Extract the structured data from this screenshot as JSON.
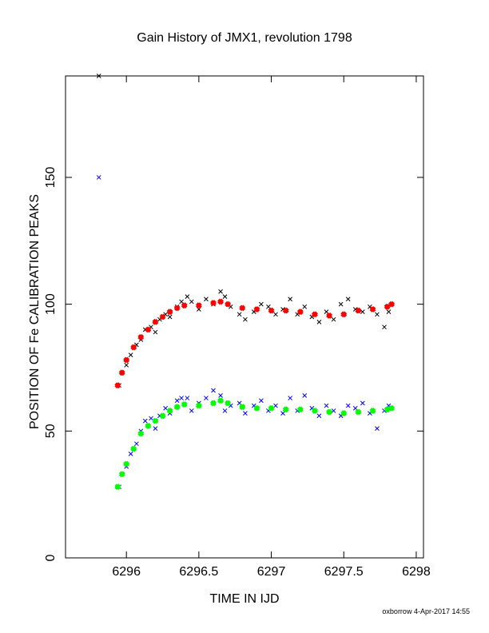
{
  "chart_data": {
    "type": "scatter",
    "title": "Gain History of JMX1, revolution 1798",
    "xlabel": "TIME IN IJD",
    "ylabel": "POSITION OF Fe CALIBRATION PEAKS",
    "footer": "oxborrow  4-Apr-2017 14:55",
    "xlim": [
      6295.58,
      6298.05
    ],
    "ylim": [
      0,
      190
    ],
    "xticks": [
      6296,
      6296.5,
      6297,
      6297.5,
      6298
    ],
    "yticks": [
      0,
      50,
      100,
      150
    ],
    "grid": false,
    "series": [
      {
        "color": "#000000",
        "x": [
          6295.81,
          6295.95,
          6296.0,
          6296.03,
          6296.07,
          6296.1,
          6296.13,
          6296.17,
          6296.2,
          6296.23,
          6296.27,
          6296.3,
          6296.35,
          6296.38,
          6296.42,
          6296.45,
          6296.5,
          6296.55,
          6296.6,
          6296.65,
          6296.68,
          6296.72,
          6296.78,
          6296.82,
          6296.88,
          6296.93,
          6296.98,
          6297.03,
          6297.08,
          6297.13,
          6297.18,
          6297.23,
          6297.28,
          6297.33,
          6297.38,
          6297.43,
          6297.48,
          6297.53,
          6297.58,
          6297.63,
          6297.68,
          6297.73,
          6297.78,
          6297.81
        ],
        "values": [
          190,
          68,
          76,
          80,
          84,
          86,
          90,
          91,
          89,
          94,
          96,
          95,
          99,
          101,
          103,
          101,
          98,
          102,
          100,
          105,
          103,
          99,
          96,
          94,
          97,
          100,
          99,
          96,
          98,
          102,
          96,
          99,
          95,
          93,
          97,
          94,
          100,
          102,
          98,
          97,
          99,
          96,
          91,
          97
        ]
      },
      {
        "color": "#0000ff",
        "x": [
          6295.81,
          6295.95,
          6296.0,
          6296.03,
          6296.07,
          6296.1,
          6296.13,
          6296.17,
          6296.2,
          6296.23,
          6296.27,
          6296.3,
          6296.35,
          6296.38,
          6296.42,
          6296.45,
          6296.5,
          6296.55,
          6296.6,
          6296.65,
          6296.68,
          6296.72,
          6296.78,
          6296.82,
          6296.88,
          6296.93,
          6296.98,
          6297.03,
          6297.08,
          6297.13,
          6297.18,
          6297.23,
          6297.28,
          6297.33,
          6297.38,
          6297.43,
          6297.48,
          6297.53,
          6297.58,
          6297.63,
          6297.68,
          6297.73,
          6297.78,
          6297.81
        ],
        "values": [
          150,
          28,
          36,
          41,
          45,
          50,
          54,
          55,
          51,
          56,
          59,
          57,
          62,
          63,
          63,
          58,
          61,
          63,
          66,
          64,
          58,
          60,
          61,
          57,
          60,
          62,
          58,
          60,
          57,
          63,
          58,
          64,
          59,
          56,
          60,
          58,
          56,
          60,
          59,
          61,
          57,
          51,
          58,
          60
        ]
      },
      {
        "color": "#ff0000",
        "x": [
          6295.94,
          6295.97,
          6296.0,
          6296.05,
          6296.1,
          6296.15,
          6296.2,
          6296.25,
          6296.3,
          6296.35,
          6296.4,
          6296.5,
          6296.6,
          6296.65,
          6296.7,
          6296.8,
          6296.9,
          6297.0,
          6297.1,
          6297.2,
          6297.3,
          6297.4,
          6297.5,
          6297.6,
          6297.7,
          6297.8,
          6297.83
        ],
        "values": [
          68,
          73,
          78,
          83,
          87,
          90,
          93,
          95,
          97,
          98.5,
          99.5,
          99.5,
          100.5,
          101,
          100,
          98.5,
          98,
          97.5,
          97.5,
          97,
          96,
          95.5,
          96,
          97.5,
          98,
          99,
          100
        ]
      },
      {
        "color": "#00ff00",
        "x": [
          6295.94,
          6295.97,
          6296.0,
          6296.05,
          6296.1,
          6296.15,
          6296.2,
          6296.25,
          6296.3,
          6296.35,
          6296.4,
          6296.5,
          6296.6,
          6296.65,
          6296.7,
          6296.8,
          6296.9,
          6297.0,
          6297.1,
          6297.2,
          6297.3,
          6297.4,
          6297.5,
          6297.6,
          6297.7,
          6297.8,
          6297.83
        ],
        "values": [
          28,
          33,
          37,
          43,
          49,
          52,
          54,
          56,
          58,
          59.5,
          60.5,
          60,
          61,
          62,
          61,
          59.5,
          59,
          59,
          58.5,
          58.5,
          58,
          57.5,
          57,
          57.5,
          58,
          58.5,
          59
        ]
      }
    ]
  }
}
